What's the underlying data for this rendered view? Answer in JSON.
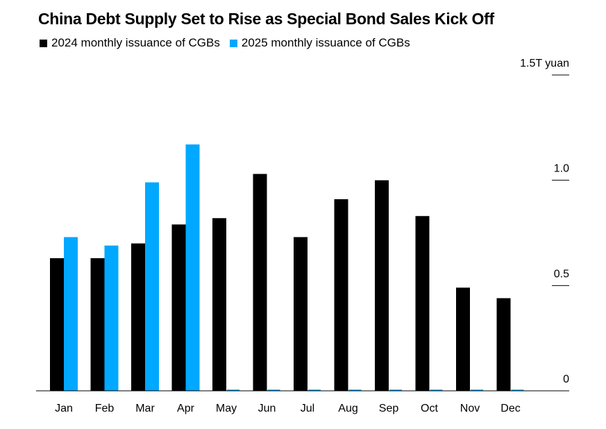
{
  "chart_data": {
    "type": "bar",
    "title": "China Debt Supply Set to Rise as Special Bond Sales Kick Off",
    "categories": [
      "Jan",
      "Feb",
      "Mar",
      "Apr",
      "May",
      "Jun",
      "Jul",
      "Aug",
      "Sep",
      "Oct",
      "Nov",
      "Dec"
    ],
    "series": [
      {
        "name": "2024 monthly issuance of CGBs",
        "color": "#000000",
        "values": [
          0.63,
          0.63,
          0.7,
          0.79,
          0.82,
          1.03,
          0.73,
          0.91,
          1.0,
          0.83,
          0.49,
          0.44
        ]
      },
      {
        "name": "2025 monthly issuance of CGBs",
        "color": "#00a8ff",
        "values": [
          0.73,
          0.69,
          0.99,
          1.17,
          0,
          0,
          0,
          0,
          0,
          0,
          0,
          0
        ]
      }
    ],
    "y_ticks": [
      {
        "value": 0,
        "label": "0"
      },
      {
        "value": 0.5,
        "label": "0.5"
      },
      {
        "value": 1.0,
        "label": "1.0"
      },
      {
        "value": 1.5,
        "label": "1.5T yuan"
      }
    ],
    "ylim": [
      0,
      1.5
    ],
    "y_axis_position": "right",
    "legend_position": "top-left",
    "grid": false
  }
}
